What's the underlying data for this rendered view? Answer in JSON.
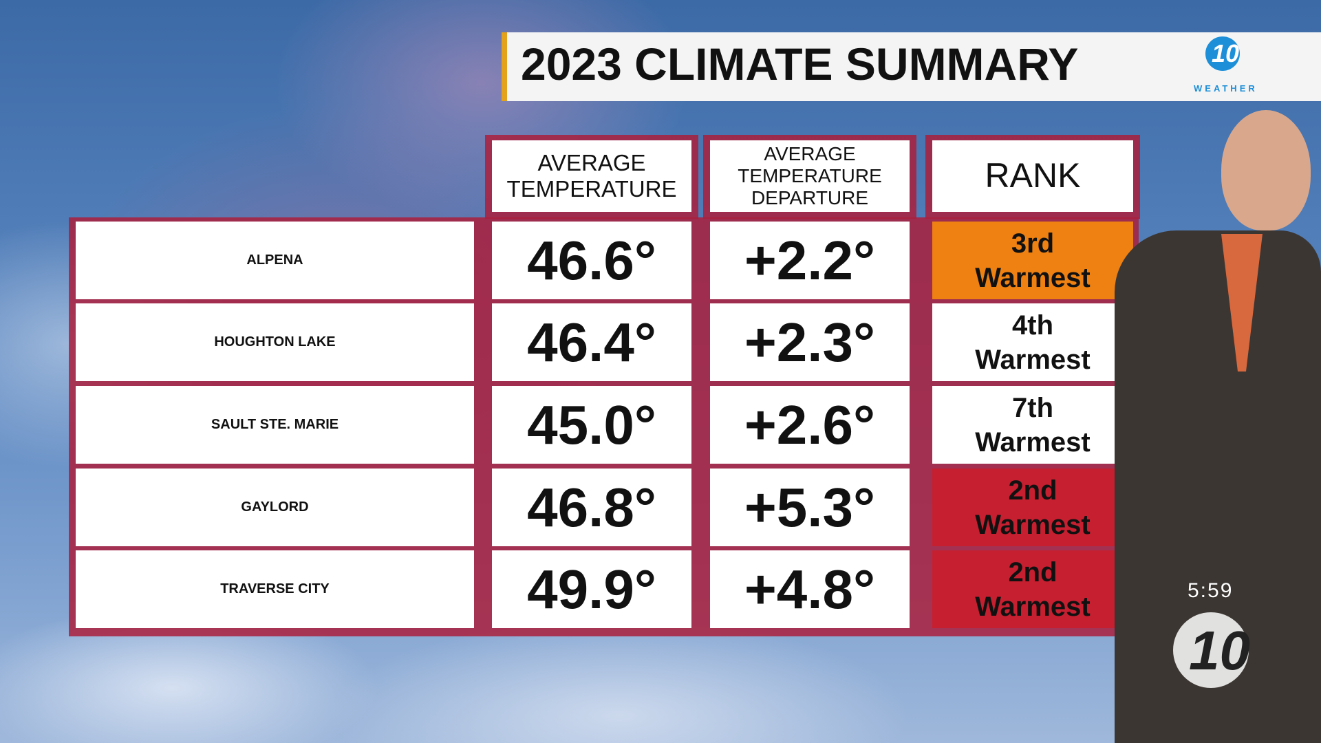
{
  "header": {
    "title": "2023 CLIMATE SUMMARY",
    "logo": "10",
    "logo_caption": "WEATHER"
  },
  "table": {
    "columns": [
      "AVERAGE TEMPERATURE",
      "AVERAGE TEMPERATURE DEPARTURE",
      "RANK"
    ],
    "rows": [
      [
        "ALPENA",
        "46.6°",
        "+2.2°",
        "3rd Warmest"
      ],
      [
        "HOUGHTON LAKE",
        "46.4°",
        "+2.3°",
        "4th Warmest"
      ],
      [
        "SAULT STE. MARIE",
        "45.0°",
        "+2.6°",
        "7th Warmest"
      ],
      [
        "GAYLORD",
        "46.8°",
        "+5.3°",
        "2nd Warmest"
      ],
      [
        "TRAVERSE CITY",
        "49.9°",
        "+4.8°",
        "2nd Warmest"
      ]
    ],
    "rank_colors": [
      "#ee8112",
      "#ffffff",
      "#ffffff",
      "#c61f30",
      "#c61f30"
    ]
  },
  "clock": "5:59",
  "bug": "10"
}
